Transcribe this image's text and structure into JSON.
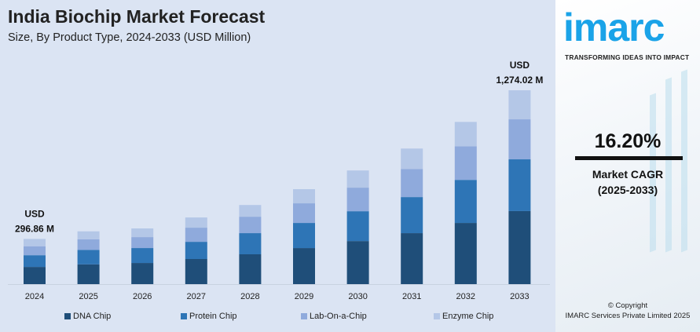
{
  "header": {
    "title": "India Biochip Market Forecast",
    "subtitle": "Size, By Product Type, 2024-2033 (USD Million)"
  },
  "chart_data": {
    "type": "bar",
    "stacked": true,
    "title": "India Biochip Market Forecast",
    "subtitle": "Size, By Product Type, 2024-2033 (USD Million)",
    "categories": [
      "2024",
      "2025",
      "2026",
      "2027",
      "2028",
      "2029",
      "2030",
      "2031",
      "2032",
      "2033"
    ],
    "series": [
      {
        "name": "DNA Chip",
        "color": "#1f4e79",
        "values": [
          113,
          130,
          139,
          165,
          196,
          237,
          283,
          335,
          402,
          480
        ]
      },
      {
        "name": "Protein Chip",
        "color": "#2e75b6",
        "values": [
          77,
          95,
          98,
          113,
          139,
          165,
          196,
          237,
          283,
          340
        ]
      },
      {
        "name": "Lab-On-a-Chip",
        "color": "#8faadc",
        "values": [
          59,
          70,
          72,
          93,
          108,
          129,
          155,
          185,
          221,
          263
        ]
      },
      {
        "name": "Enzyme Chip",
        "color": "#b4c7e7",
        "values": [
          48,
          52,
          57,
          67,
          77,
          93,
          113,
          134,
          160,
          191
        ]
      }
    ],
    "annotations": [
      {
        "category": "2024",
        "line1": "USD",
        "line2": "296.86 M"
      },
      {
        "category": "2033",
        "line1": "USD",
        "line2": "1,274.02 M"
      }
    ],
    "legend": "bottom",
    "grid": false
  },
  "sidebar": {
    "logo": "imarc",
    "tagline": "TRANSFORMING IDEAS INTO IMPACT",
    "cagr_value": "16.20%",
    "cagr_label": "Market CAGR",
    "cagr_period": "(2025-2033)",
    "copyright_line1": "© Copyright",
    "copyright_line2": "IMARC Services Private Limited 2025"
  }
}
